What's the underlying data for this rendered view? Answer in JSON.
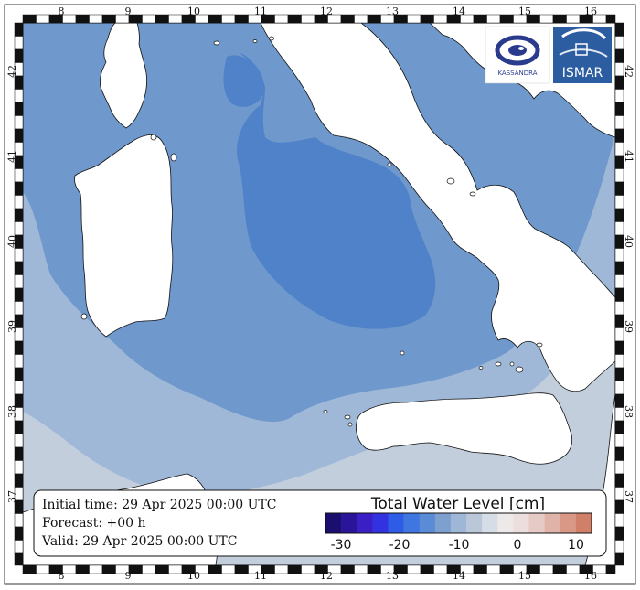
{
  "map": {
    "lon_ticks": [
      "8",
      "9",
      "10",
      "11",
      "12",
      "13",
      "14",
      "15",
      "16"
    ],
    "lat_ticks": [
      "42",
      "41",
      "40",
      "39",
      "38",
      "37"
    ]
  },
  "info": {
    "initial_time": "Initial time: 29 Apr 2025 00:00 UTC",
    "forecast": "Forecast: +00 h",
    "valid": "Valid: 29 Apr 2025 00:00 UTC"
  },
  "colorbar": {
    "title": "Total Water Level [cm]",
    "labels": [
      "-30",
      "-20",
      "-10",
      "0",
      "10"
    ],
    "colors": [
      "#1a0f6e",
      "#2a159a",
      "#3a1fc4",
      "#3232e0",
      "#2f5ce6",
      "#3f76e0",
      "#5a8bd6",
      "#7ea0cf",
      "#9fb7d6",
      "#bac7d9",
      "#d6dde6",
      "#ece9e8",
      "#ecdedc",
      "#e6cac5",
      "#dfb3a8",
      "#d99886",
      "#d08068"
    ]
  },
  "logos": {
    "left_text": "KASSANDRA",
    "right_text": "ISMAR"
  },
  "colors": {
    "sea_deep": "#4f82c8",
    "sea_mid": "#6f98cc",
    "sea_light": "#9fb8d7",
    "sea_pale": "#c2cedc",
    "land": "#ffffff"
  }
}
